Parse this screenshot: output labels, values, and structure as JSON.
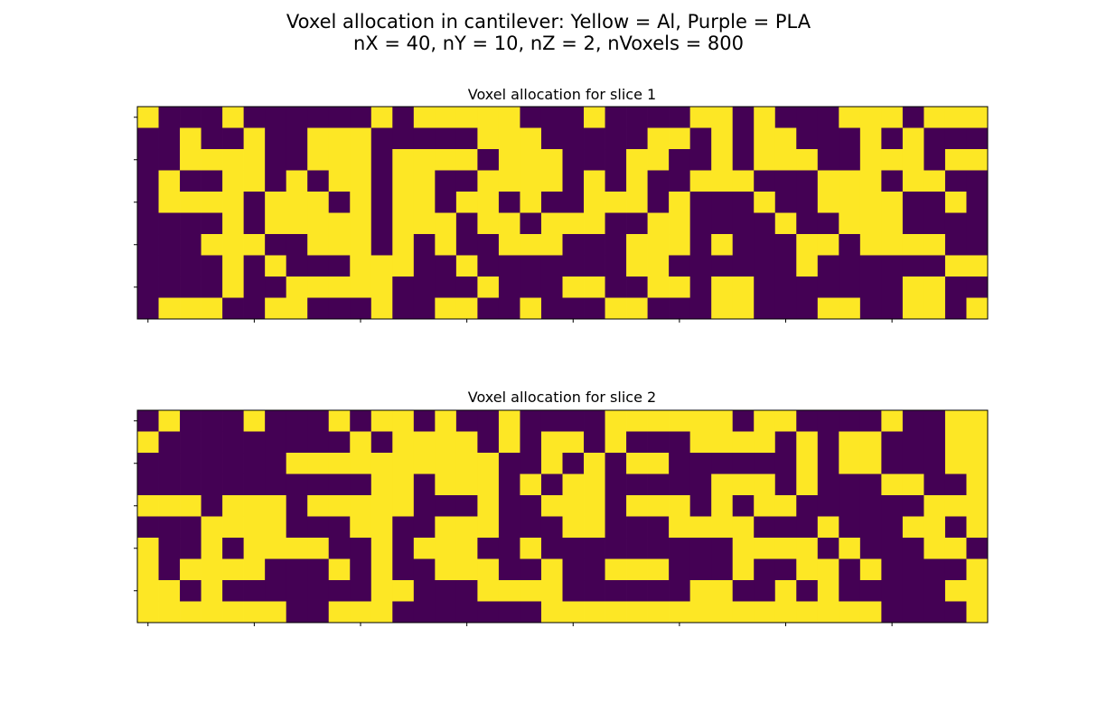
{
  "figure": {
    "title_line1": "Voxel allocation in cantilever: Yellow = Al, Purple = PLA",
    "title_line2": "nX = 40, nY = 10, nZ = 2, nVoxels = 800"
  },
  "colors": {
    "yellow": "#fde725",
    "purple": "#440154"
  },
  "chart_data": [
    {
      "type": "heatmap",
      "title": "Voxel allocation for slice 1",
      "legend": "none",
      "grid": false,
      "tick_labels": "hidden",
      "x_ticks": [
        0,
        5,
        10,
        15,
        20,
        25,
        30,
        35
      ],
      "y_ticks": [
        0,
        2,
        4,
        6,
        8
      ],
      "xlim": [
        -0.5,
        39.5
      ],
      "ylim": [
        9.5,
        -0.5
      ],
      "encoding": {
        "1": "Al (yellow)",
        "0": "PLA (purple)"
      },
      "rows": [
        "1000100000010111110001000011010001110111",
        "0010010011100000111000001101011000101000",
        "0011110011101111011100011001011100111011",
        "0100110101101100111101010011100011101100",
        "0111101110101101101001110100010011110010",
        "0000101111101110110111001100001001110000",
        "0001110011101010011100011101000110111100",
        "0000101000111001000000011000000100000011",
        "0000100111110000100011001101100000001100",
        "0111001100010011001000110001100011001101"
      ]
    },
    {
      "type": "heatmap",
      "title": "Voxel allocation for slice 2",
      "legend": "none",
      "grid": false,
      "tick_labels": "hidden",
      "x_ticks": [
        0,
        5,
        10,
        15,
        20,
        25,
        30,
        35
      ],
      "y_ticks": [
        0,
        2,
        4,
        6,
        8
      ],
      "xlim": [
        -0.5,
        39.5
      ],
      "ylim": [
        9.5,
        -0.5
      ],
      "encoding": {
        "1": "Al (yellow)",
        "0": "PLA (purple)"
      },
      "rows": [
        "0100010001011010010000111111011000010011",
        "1000000000101111010110100011110101100011",
        "0000000111111111100101011000000101100011",
        "0000000000011011101011000001110100011001",
        "1110111011111000100111011101011000000111",
        "0001111000110011100011000111100010001101",
        "1001011110010111001000000000111101000110",
        "1011110001010011100100111000100110100001",
        "1101000000011000111100000011001010000011",
        "1111111001110000000111111111111111100001"
      ]
    }
  ]
}
